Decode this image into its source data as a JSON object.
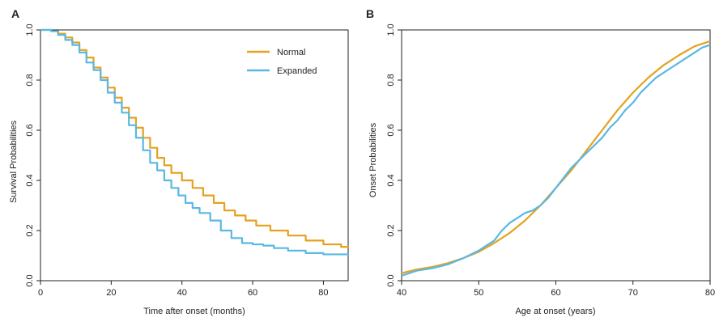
{
  "colors": {
    "normal": "#e5a11f",
    "expanded": "#5ab8e2",
    "axis": "#222222"
  },
  "chart_data": [
    {
      "type": "line",
      "panel": "A",
      "xlabel": "Time after onset (months)",
      "ylabel": "Survival Probabilities",
      "xlim": [
        0,
        87
      ],
      "ylim": [
        0,
        1.0
      ],
      "x_ticks": [
        "0",
        "20",
        "40",
        "60",
        "80"
      ],
      "y_ticks": [
        "0.0",
        "0.2",
        "0.4",
        "0.6",
        "0.8",
        "1.0"
      ],
      "grid": false,
      "legend": "top-right",
      "step": true,
      "series": [
        {
          "name": "Normal",
          "color": "#e5a11f",
          "x": [
            0,
            3,
            5,
            7,
            9,
            11,
            13,
            15,
            17,
            19,
            21,
            23,
            25,
            27,
            29,
            31,
            33,
            35,
            37,
            40,
            43,
            46,
            49,
            52,
            55,
            58,
            61,
            65,
            70,
            75,
            80,
            85,
            87
          ],
          "y": [
            1.0,
            0.995,
            0.985,
            0.97,
            0.95,
            0.92,
            0.89,
            0.85,
            0.81,
            0.77,
            0.73,
            0.69,
            0.65,
            0.61,
            0.57,
            0.53,
            0.49,
            0.46,
            0.43,
            0.4,
            0.37,
            0.34,
            0.31,
            0.28,
            0.26,
            0.24,
            0.22,
            0.2,
            0.18,
            0.16,
            0.145,
            0.135,
            0.13
          ]
        },
        {
          "name": "Expanded",
          "color": "#5ab8e2",
          "x": [
            0,
            3,
            5,
            7,
            9,
            11,
            13,
            15,
            17,
            19,
            21,
            23,
            25,
            27,
            29,
            31,
            33,
            35,
            37,
            39,
            41,
            43,
            45,
            48,
            51,
            54,
            57,
            60,
            63,
            66,
            70,
            75,
            80,
            87
          ],
          "y": [
            1.0,
            0.995,
            0.98,
            0.96,
            0.94,
            0.91,
            0.87,
            0.84,
            0.8,
            0.75,
            0.71,
            0.67,
            0.62,
            0.57,
            0.52,
            0.47,
            0.44,
            0.4,
            0.37,
            0.34,
            0.31,
            0.29,
            0.27,
            0.24,
            0.2,
            0.17,
            0.15,
            0.145,
            0.14,
            0.13,
            0.12,
            0.11,
            0.105,
            0.1
          ]
        }
      ]
    },
    {
      "type": "line",
      "panel": "B",
      "xlabel": "Age at onset (years)",
      "ylabel": "Onset Probabilities",
      "xlim": [
        40,
        80
      ],
      "ylim": [
        0,
        1.0
      ],
      "x_ticks": [
        "40",
        "50",
        "60",
        "70",
        "80"
      ],
      "y_ticks": [
        "0.0",
        "0.2",
        "0.4",
        "0.6",
        "0.8",
        "1.0"
      ],
      "grid": false,
      "legend": "none",
      "step": false,
      "series": [
        {
          "name": "Normal",
          "color": "#e5a11f",
          "x": [
            40,
            42,
            44,
            46,
            48,
            50,
            52,
            54,
            56,
            58,
            60,
            62,
            64,
            66,
            68,
            70,
            72,
            74,
            76,
            78,
            80
          ],
          "y": [
            0.03,
            0.045,
            0.055,
            0.07,
            0.09,
            0.115,
            0.15,
            0.19,
            0.24,
            0.3,
            0.37,
            0.44,
            0.52,
            0.6,
            0.68,
            0.75,
            0.81,
            0.86,
            0.9,
            0.935,
            0.955
          ]
        },
        {
          "name": "Expanded",
          "color": "#5ab8e2",
          "x": [
            40,
            42,
            44,
            46,
            48,
            50,
            52,
            53,
            54,
            55,
            56,
            57,
            58,
            59,
            60,
            61,
            62,
            63,
            64,
            65,
            66,
            67,
            68,
            69,
            70,
            71,
            72,
            73,
            74,
            75,
            76,
            77,
            78,
            79,
            80
          ],
          "y": [
            0.02,
            0.04,
            0.05,
            0.065,
            0.09,
            0.12,
            0.16,
            0.2,
            0.23,
            0.25,
            0.27,
            0.28,
            0.3,
            0.33,
            0.37,
            0.41,
            0.45,
            0.48,
            0.51,
            0.54,
            0.57,
            0.61,
            0.64,
            0.68,
            0.71,
            0.75,
            0.78,
            0.81,
            0.83,
            0.85,
            0.87,
            0.89,
            0.91,
            0.93,
            0.94
          ]
        }
      ]
    }
  ]
}
